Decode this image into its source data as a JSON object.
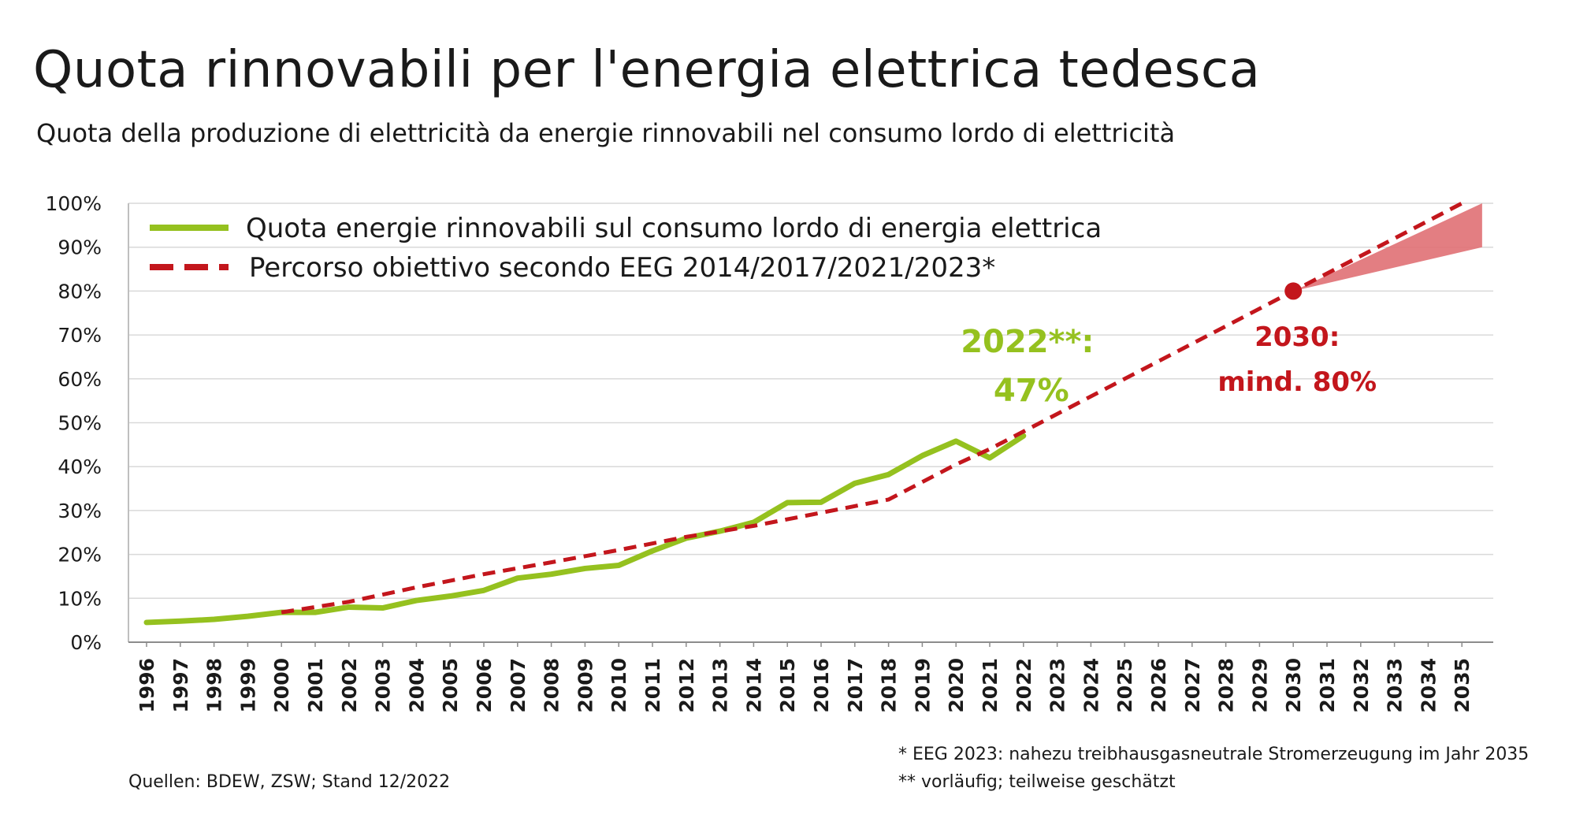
{
  "header": {
    "title": "Quota rinnovabili per l'energia elettrica tedesca",
    "subtitle": "Quota della produzione di elettricità da energie rinnovabili nel consumo lordo di elettricità"
  },
  "footer": {
    "source": "Quellen: BDEW, ZSW; Stand 12/2022",
    "note1": "* EEG 2023: nahezu treibhausgasneutrale Stromerzeugung im Jahr 2035",
    "note2": "** vorläufig; teilweise geschätzt"
  },
  "chart_data": {
    "type": "line",
    "title": "Quota rinnovabili per l'energia elettrica tedesca",
    "subtitle": "Quota della produzione di elettricità da energie rinnovabili nel consumo lordo di elettricità",
    "xlabel": "",
    "ylabel": "",
    "ylim": [
      0,
      100
    ],
    "yticks": [
      "0%",
      "10%",
      "20%",
      "30%",
      "40%",
      "50%",
      "60%",
      "70%",
      "80%",
      "90%",
      "100%"
    ],
    "x": [
      1996,
      1997,
      1998,
      1999,
      2000,
      2001,
      2002,
      2003,
      2004,
      2005,
      2006,
      2007,
      2008,
      2009,
      2010,
      2011,
      2012,
      2013,
      2014,
      2015,
      2016,
      2017,
      2018,
      2019,
      2020,
      2021,
      2022,
      2023,
      2024,
      2025,
      2026,
      2027,
      2028,
      2029,
      2030,
      2031,
      2032,
      2033,
      2034,
      2035
    ],
    "grid": true,
    "legend_position": "top-left",
    "series": [
      {
        "name": "Quota energie rinnovabili sul consumo lordo di energia elettrica",
        "color": "#95c11f",
        "style": "solid",
        "x": [
          1996,
          1997,
          1998,
          1999,
          2000,
          2001,
          2002,
          2003,
          2004,
          2005,
          2006,
          2007,
          2008,
          2009,
          2010,
          2011,
          2012,
          2013,
          2014,
          2015,
          2016,
          2017,
          2018,
          2019,
          2020,
          2021,
          2022
        ],
        "values": [
          4.5,
          4.8,
          5.2,
          5.9,
          6.8,
          6.8,
          8.0,
          7.8,
          9.5,
          10.5,
          11.8,
          14.6,
          15.5,
          16.8,
          17.5,
          20.8,
          23.7,
          25.3,
          27.3,
          31.8,
          31.9,
          36.2,
          38.2,
          42.5,
          45.8,
          42.0,
          47.0
        ]
      },
      {
        "name": "Percorso obiettivo secondo EEG 2014/2017/2021/2023*",
        "color": "#c3161c",
        "style": "dashed",
        "x": [
          2000,
          2002,
          2004,
          2006,
          2008,
          2010,
          2012,
          2014,
          2016,
          2018,
          2020,
          2021,
          2022,
          2030,
          2035
        ],
        "values": [
          6.8,
          9.2,
          12.5,
          15.5,
          18.2,
          21.0,
          24.0,
          26.5,
          29.5,
          32.5,
          40.5,
          44.0,
          48.0,
          80.0,
          100.0
        ]
      }
    ],
    "range_band": {
      "color": "#e07074",
      "from": {
        "x": 2030,
        "y": 80
      },
      "to": {
        "x": 2035.6,
        "low": 90,
        "high": 100
      }
    },
    "annotations": [
      {
        "lines": [
          "2022**:",
          "47%"
        ],
        "color": "#95c11f",
        "x": 2022,
        "y": 47
      },
      {
        "lines": [
          "2030:",
          "mind. 80%"
        ],
        "color": "#c3161c",
        "x": 2030,
        "y": 80
      }
    ]
  }
}
